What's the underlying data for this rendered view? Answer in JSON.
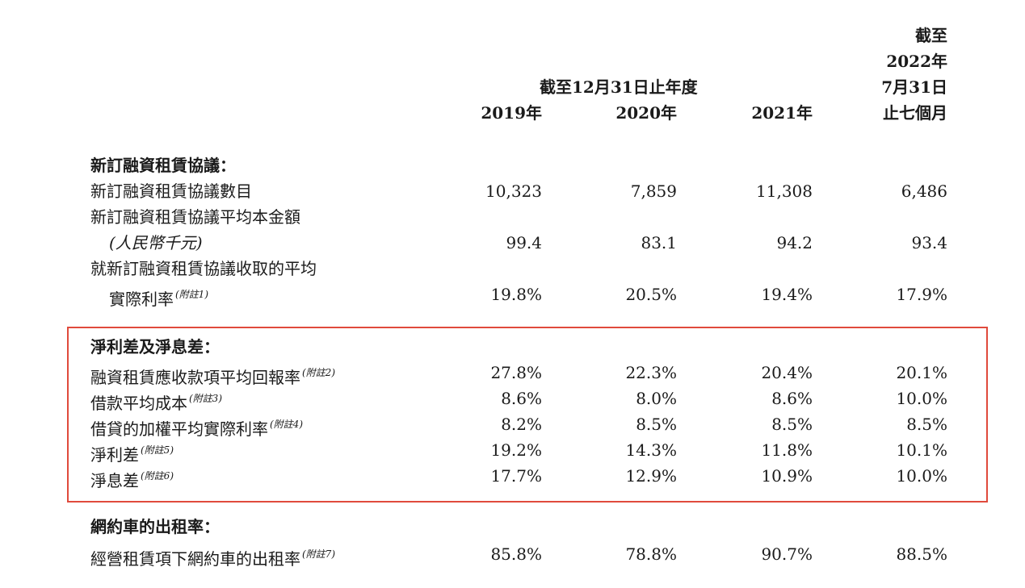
{
  "header": {
    "last_col": [
      "截至",
      "2022年",
      "7月31日",
      "止七個月"
    ],
    "group_label": "截至12月31日止年度",
    "years": [
      "2019年",
      "2020年",
      "2021年"
    ]
  },
  "sections": [
    {
      "title": "新訂融資租賃協議：",
      "rows": [
        {
          "label": "新訂融資租賃協議數目",
          "values": [
            "10,323",
            "7,859",
            "11,308",
            "6,486"
          ]
        },
        {
          "label": "新訂融資租賃協議平均本金額",
          "label2": "(人民幣千元)",
          "values": [
            "99.4",
            "83.1",
            "94.2",
            "93.4"
          ]
        },
        {
          "label": "就新訂融資租賃協議收取的平均",
          "label2": "實際利率",
          "note": "(附註1)",
          "values": [
            "19.8%",
            "20.5%",
            "19.4%",
            "17.9%"
          ]
        }
      ]
    },
    {
      "title": "淨利差及淨息差：",
      "rows": [
        {
          "label": "融資租賃應收款項平均回報率",
          "note": "(附註2)",
          "values": [
            "27.8%",
            "22.3%",
            "20.4%",
            "20.1%"
          ]
        },
        {
          "label": "借款平均成本",
          "note": "(附註3)",
          "values": [
            "8.6%",
            "8.0%",
            "8.6%",
            "10.0%"
          ]
        },
        {
          "label": "借貸的加權平均實際利率",
          "note": "(附註4)",
          "values": [
            "8.2%",
            "8.5%",
            "8.5%",
            "8.5%"
          ]
        },
        {
          "label": "淨利差",
          "note": "(附註5)",
          "values": [
            "19.2%",
            "14.3%",
            "11.8%",
            "10.1%"
          ]
        },
        {
          "label": "淨息差",
          "note": "(附註6)",
          "values": [
            "17.7%",
            "12.9%",
            "10.9%",
            "10.0%"
          ]
        }
      ]
    },
    {
      "title": "網約車的出租率：",
      "rows": [
        {
          "label": "經營租賃項下網約車的出租率",
          "note": "(附註7)",
          "values": [
            "85.8%",
            "78.8%",
            "90.7%",
            "88.5%"
          ]
        }
      ]
    }
  ],
  "highlight_color": "#e04a3c"
}
